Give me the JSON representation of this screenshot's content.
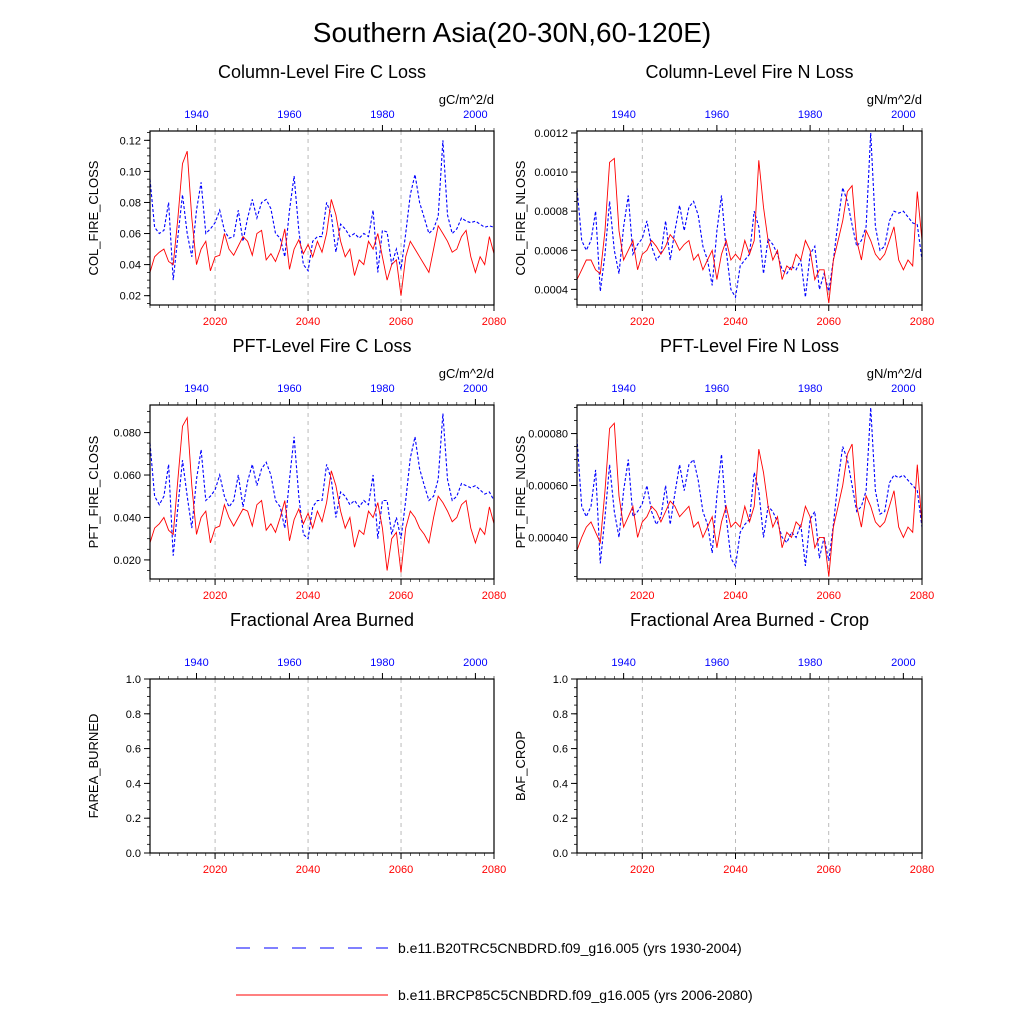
{
  "figure_title": "Southern Asia(20-30N,60-120E)",
  "colors": {
    "obs": "#0000ff",
    "future": "#ff0000",
    "axis": "#000000",
    "grid": "#aaaaaa"
  },
  "legend": [
    {
      "label": "b.e11.B20TRC5CNBDRD.f09_g16.005 (yrs 1930-2004)",
      "color": "#0000ff",
      "dash": "dashed"
    },
    {
      "label": "b.e11.BRCP85C5CNBDRD.f09_g16.005 (yrs 2006-2080)",
      "color": "#ff0000",
      "dash": "solid"
    }
  ],
  "chart_data": [
    {
      "type": "line",
      "title": "Column-Level Fire C Loss",
      "units": "gC/m^2/d",
      "ylabel": "COL_FIRE_CLOSS",
      "ylim": [
        0.014,
        0.126
      ],
      "yticks": [
        "0.02",
        "0.04",
        "0.06",
        "0.08",
        "0.10",
        "0.12"
      ],
      "top_axis": {
        "range": [
          1930,
          2004
        ],
        "ticks": [
          "1940",
          "1960",
          "1980",
          "2000"
        ]
      },
      "bottom_axis": {
        "range": [
          2006,
          2080
        ],
        "ticks": [
          "2020",
          "2040",
          "2060",
          "2080"
        ]
      },
      "series": [
        {
          "name": "b.e11.B20TRC5CNBDRD.f09_g16.005 (yrs 1930-2004)",
          "axis": "top",
          "values": [
            0.095,
            0.064,
            0.06,
            0.062,
            0.08,
            0.03,
            0.058,
            0.085,
            0.06,
            0.045,
            0.075,
            0.093,
            0.06,
            0.063,
            0.067,
            0.075,
            0.062,
            0.057,
            0.058,
            0.075,
            0.055,
            0.07,
            0.082,
            0.07,
            0.08,
            0.082,
            0.076,
            0.06,
            0.057,
            0.045,
            0.075,
            0.097,
            0.062,
            0.04,
            0.036,
            0.055,
            0.058,
            0.058,
            0.08,
            0.072,
            0.048,
            0.066,
            0.063,
            0.058,
            0.06,
            0.057,
            0.06,
            0.058,
            0.075,
            0.035,
            0.062,
            0.061,
            0.04,
            0.05,
            0.037,
            0.06,
            0.085,
            0.098,
            0.08,
            0.07,
            0.06,
            0.063,
            0.071,
            0.12,
            0.072,
            0.06,
            0.063,
            0.07,
            0.068,
            0.067,
            0.068,
            0.066,
            0.064,
            0.065,
            0.064
          ]
        },
        {
          "name": "b.e11.BRCP85C5CNBDRD.f09_g16.005 (yrs 2006-2080)",
          "axis": "bottom",
          "values": [
            0.035,
            0.045,
            0.048,
            0.05,
            0.042,
            0.04,
            0.07,
            0.105,
            0.113,
            0.07,
            0.04,
            0.05,
            0.055,
            0.036,
            0.045,
            0.046,
            0.06,
            0.05,
            0.046,
            0.052,
            0.058,
            0.055,
            0.046,
            0.06,
            0.062,
            0.043,
            0.047,
            0.042,
            0.05,
            0.063,
            0.037,
            0.05,
            0.056,
            0.047,
            0.053,
            0.045,
            0.055,
            0.048,
            0.06,
            0.082,
            0.072,
            0.055,
            0.045,
            0.05,
            0.033,
            0.043,
            0.04,
            0.055,
            0.05,
            0.06,
            0.045,
            0.03,
            0.04,
            0.043,
            0.02,
            0.045,
            0.055,
            0.05,
            0.045,
            0.04,
            0.035,
            0.05,
            0.065,
            0.06,
            0.055,
            0.048,
            0.05,
            0.058,
            0.062,
            0.045,
            0.035,
            0.045,
            0.04,
            0.058,
            0.047
          ]
        }
      ]
    },
    {
      "type": "line",
      "title": "Column-Level Fire N Loss",
      "units": "gN/m^2/d",
      "ylabel": "COL_FIRE_NLOSS",
      "ylim": [
        0.00032,
        0.00121
      ],
      "yticks": [
        "0.0004",
        "0.0006",
        "0.0008",
        "0.0010",
        "0.0012"
      ],
      "top_axis": {
        "range": [
          1930,
          2004
        ],
        "ticks": [
          "1940",
          "1960",
          "1980",
          "2000"
        ]
      },
      "bottom_axis": {
        "range": [
          2006,
          2080
        ],
        "ticks": [
          "2020",
          "2040",
          "2060",
          "2080"
        ]
      },
      "series": [
        {
          "name": "b.e11.B20TRC5CNBDRD.f09_g16.005 (yrs 1930-2004)",
          "axis": "top",
          "values": [
            0.00092,
            0.00065,
            0.0006,
            0.00065,
            0.0008,
            0.00039,
            0.00058,
            0.00085,
            0.0006,
            0.00048,
            0.00072,
            0.00088,
            0.00058,
            0.00063,
            0.00066,
            0.00075,
            0.00062,
            0.00055,
            0.00058,
            0.00075,
            0.00055,
            0.0007,
            0.00083,
            0.0007,
            0.00082,
            0.00085,
            0.00078,
            0.00062,
            0.00055,
            0.00042,
            0.0007,
            0.00088,
            0.0006,
            0.0004,
            0.00036,
            0.00052,
            0.00055,
            0.00058,
            0.0008,
            0.00072,
            0.00048,
            0.00066,
            0.00063,
            0.00058,
            0.0005,
            0.00048,
            0.00052,
            0.0005,
            0.00055,
            0.00036,
            0.00058,
            0.00062,
            0.0004,
            0.00048,
            0.00039,
            0.00055,
            0.00075,
            0.00092,
            0.00085,
            0.00073,
            0.00062,
            0.00065,
            0.00072,
            0.0012,
            0.00072,
            0.0006,
            0.00062,
            0.00075,
            0.0008,
            0.00079,
            0.0008,
            0.00077,
            0.00074,
            0.00073,
            0.00055
          ]
        },
        {
          "name": "b.e11.BRCP85C5CNBDRD.f09_g16.005 (yrs 2006-2080)",
          "axis": "bottom",
          "values": [
            0.00045,
            0.0005,
            0.00055,
            0.00055,
            0.0005,
            0.00048,
            0.0007,
            0.00105,
            0.00107,
            0.0007,
            0.00055,
            0.0006,
            0.00065,
            0.0005,
            0.00058,
            0.0006,
            0.00065,
            0.00062,
            0.00058,
            0.00062,
            0.00068,
            0.00065,
            0.0006,
            0.00063,
            0.00065,
            0.00055,
            0.00058,
            0.0005,
            0.00055,
            0.0006,
            0.00045,
            0.00058,
            0.00065,
            0.00055,
            0.00058,
            0.00055,
            0.00065,
            0.00058,
            0.00065,
            0.00106,
            0.00082,
            0.00065,
            0.00055,
            0.0006,
            0.00045,
            0.00052,
            0.0005,
            0.00058,
            0.00055,
            0.00065,
            0.0006,
            0.00045,
            0.0005,
            0.0005,
            0.00033,
            0.00055,
            0.00065,
            0.00075,
            0.0009,
            0.00093,
            0.00065,
            0.00055,
            0.0007,
            0.00065,
            0.00058,
            0.00055,
            0.00058,
            0.00065,
            0.00072,
            0.00055,
            0.0005,
            0.00055,
            0.00052,
            0.0009,
            0.00065
          ]
        }
      ]
    },
    {
      "type": "line",
      "title": "PFT-Level Fire C Loss",
      "units": "gC/m^2/d",
      "ylabel": "PFT_FIRE_CLOSS",
      "ylim": [
        0.011,
        0.093
      ],
      "yticks": [
        "0.020",
        "0.040",
        "0.060",
        "0.080"
      ],
      "top_axis": {
        "range": [
          1930,
          2004
        ],
        "ticks": [
          "1940",
          "1960",
          "1980",
          "2000"
        ]
      },
      "bottom_axis": {
        "range": [
          2006,
          2080
        ],
        "ticks": [
          "2020",
          "2040",
          "2060",
          "2080"
        ]
      },
      "series": [
        {
          "name": "b.e11.B20TRC5CNBDRD.f09_g16.005 (yrs 1930-2004)",
          "axis": "top",
          "values": [
            0.075,
            0.05,
            0.046,
            0.05,
            0.065,
            0.022,
            0.045,
            0.067,
            0.05,
            0.035,
            0.058,
            0.072,
            0.048,
            0.05,
            0.053,
            0.06,
            0.05,
            0.045,
            0.048,
            0.06,
            0.045,
            0.057,
            0.065,
            0.055,
            0.063,
            0.066,
            0.06,
            0.048,
            0.045,
            0.035,
            0.058,
            0.078,
            0.05,
            0.032,
            0.03,
            0.045,
            0.048,
            0.048,
            0.065,
            0.058,
            0.04,
            0.052,
            0.05,
            0.046,
            0.048,
            0.045,
            0.048,
            0.046,
            0.06,
            0.03,
            0.048,
            0.048,
            0.032,
            0.04,
            0.03,
            0.048,
            0.068,
            0.078,
            0.063,
            0.055,
            0.048,
            0.05,
            0.058,
            0.089,
            0.058,
            0.048,
            0.05,
            0.056,
            0.055,
            0.054,
            0.055,
            0.053,
            0.051,
            0.052,
            0.048
          ]
        },
        {
          "name": "b.e11.BRCP85C5CNBDRD.f09_g16.005 (yrs 2006-2080)",
          "axis": "bottom",
          "values": [
            0.028,
            0.035,
            0.037,
            0.04,
            0.034,
            0.032,
            0.058,
            0.083,
            0.087,
            0.055,
            0.032,
            0.04,
            0.043,
            0.028,
            0.035,
            0.036,
            0.046,
            0.04,
            0.036,
            0.04,
            0.044,
            0.043,
            0.036,
            0.046,
            0.048,
            0.034,
            0.037,
            0.033,
            0.04,
            0.048,
            0.029,
            0.039,
            0.044,
            0.037,
            0.042,
            0.035,
            0.043,
            0.038,
            0.047,
            0.062,
            0.055,
            0.043,
            0.035,
            0.04,
            0.026,
            0.034,
            0.032,
            0.043,
            0.04,
            0.047,
            0.035,
            0.015,
            0.03,
            0.033,
            0.014,
            0.035,
            0.043,
            0.04,
            0.035,
            0.032,
            0.028,
            0.04,
            0.05,
            0.047,
            0.043,
            0.038,
            0.04,
            0.046,
            0.048,
            0.035,
            0.028,
            0.035,
            0.032,
            0.045,
            0.037
          ]
        }
      ]
    },
    {
      "type": "line",
      "title": "PFT-Level Fire N Loss",
      "units": "gN/m^2/d",
      "ylabel": "PFT_FIRE_NLOSS",
      "ylim": [
        0.00024,
        0.00091
      ],
      "yticks": [
        "0.00040",
        "0.00060",
        "0.00080"
      ],
      "top_axis": {
        "range": [
          1930,
          2004
        ],
        "ticks": [
          "1940",
          "1960",
          "1980",
          "2000"
        ]
      },
      "bottom_axis": {
        "range": [
          2006,
          2080
        ],
        "ticks": [
          "2020",
          "2040",
          "2060",
          "2080"
        ]
      },
      "series": [
        {
          "name": "b.e11.B20TRC5CNBDRD.f09_g16.005 (yrs 1930-2004)",
          "axis": "top",
          "values": [
            0.00078,
            0.00052,
            0.00048,
            0.00052,
            0.00066,
            0.0003,
            0.00048,
            0.00068,
            0.0005,
            0.0004,
            0.00058,
            0.0007,
            0.00048,
            0.0005,
            0.00053,
            0.0006,
            0.0005,
            0.00045,
            0.00048,
            0.0006,
            0.00045,
            0.00057,
            0.00068,
            0.00058,
            0.00068,
            0.0007,
            0.00062,
            0.0005,
            0.00045,
            0.00034,
            0.00056,
            0.00072,
            0.00048,
            0.00032,
            0.00029,
            0.00042,
            0.00045,
            0.00047,
            0.00065,
            0.00058,
            0.0004,
            0.00052,
            0.0005,
            0.00046,
            0.0004,
            0.00038,
            0.00042,
            0.0004,
            0.00045,
            0.00029,
            0.00047,
            0.0005,
            0.00032,
            0.0004,
            0.00031,
            0.00045,
            0.00062,
            0.00075,
            0.0007,
            0.0006,
            0.0005,
            0.00052,
            0.00058,
            0.0009,
            0.00058,
            0.00049,
            0.0005,
            0.00061,
            0.00064,
            0.00063,
            0.00064,
            0.00062,
            0.0006,
            0.00058,
            0.00044
          ]
        },
        {
          "name": "b.e11.BRCP85C5CNBDRD.f09_g16.005 (yrs 2006-2080)",
          "axis": "bottom",
          "values": [
            0.00035,
            0.0004,
            0.00044,
            0.00046,
            0.00042,
            0.00038,
            0.00058,
            0.00082,
            0.00084,
            0.00056,
            0.00044,
            0.00048,
            0.00052,
            0.0004,
            0.00046,
            0.00048,
            0.00052,
            0.0005,
            0.00046,
            0.0005,
            0.00054,
            0.00052,
            0.00048,
            0.0005,
            0.00052,
            0.00044,
            0.00046,
            0.0004,
            0.00044,
            0.00048,
            0.00036,
            0.00046,
            0.00052,
            0.00044,
            0.00046,
            0.00044,
            0.00052,
            0.00046,
            0.00052,
            0.00074,
            0.00065,
            0.00052,
            0.00044,
            0.00048,
            0.00036,
            0.00042,
            0.0004,
            0.00046,
            0.00044,
            0.00052,
            0.00048,
            0.00036,
            0.0004,
            0.0004,
            0.00025,
            0.00044,
            0.00052,
            0.0006,
            0.00072,
            0.00076,
            0.00052,
            0.00044,
            0.00056,
            0.00052,
            0.00046,
            0.00044,
            0.00046,
            0.00052,
            0.00058,
            0.00044,
            0.0004,
            0.00044,
            0.00042,
            0.00068,
            0.00045
          ]
        }
      ]
    },
    {
      "type": "line",
      "title": "Fractional Area Burned",
      "units": "",
      "ylabel": "FAREA_BURNED",
      "ylim": [
        0,
        1
      ],
      "yticks": [
        "0.0",
        "0.2",
        "0.4",
        "0.6",
        "0.8",
        "1.0"
      ],
      "top_axis": {
        "range": [
          1930,
          2004
        ],
        "ticks": [
          "1940",
          "1960",
          "1980",
          "2000"
        ]
      },
      "bottom_axis": {
        "range": [
          2006,
          2080
        ],
        "ticks": [
          "2020",
          "2040",
          "2060",
          "2080"
        ]
      },
      "series": []
    },
    {
      "type": "line",
      "title": "Fractional Area Burned - Crop",
      "units": "",
      "ylabel": "BAF_CROP",
      "ylim": [
        0,
        1
      ],
      "yticks": [
        "0.0",
        "0.2",
        "0.4",
        "0.6",
        "0.8",
        "1.0"
      ],
      "top_axis": {
        "range": [
          1930,
          2004
        ],
        "ticks": [
          "1940",
          "1960",
          "1980",
          "2000"
        ]
      },
      "bottom_axis": {
        "range": [
          2006,
          2080
        ],
        "ticks": [
          "2020",
          "2040",
          "2060",
          "2080"
        ]
      },
      "series": []
    }
  ]
}
